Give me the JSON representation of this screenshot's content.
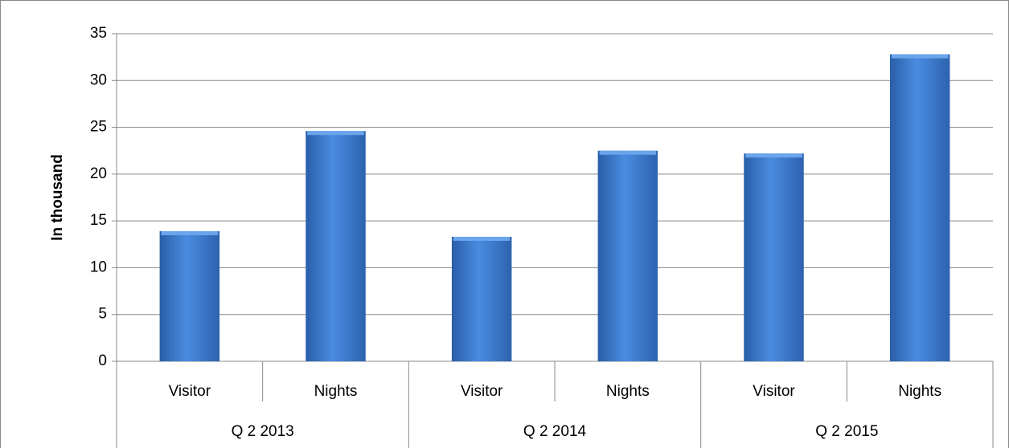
{
  "chart_data": {
    "type": "bar",
    "y_label": "In thousand",
    "categories": [
      "Visitor",
      "Nights",
      "Visitor",
      "Nights",
      "Visitor",
      "Nights"
    ],
    "groups": [
      "Q 2 2013",
      "Q 2 2014",
      "Q 2 2015"
    ],
    "values": [
      13.9,
      24.6,
      13.3,
      22.5,
      22.2,
      32.8
    ],
    "color": "#3f7fd0",
    "ylim": [
      0,
      35
    ],
    "yticks": [
      0,
      5,
      10,
      15,
      20,
      25,
      30,
      35
    ],
    "grid": true
  }
}
